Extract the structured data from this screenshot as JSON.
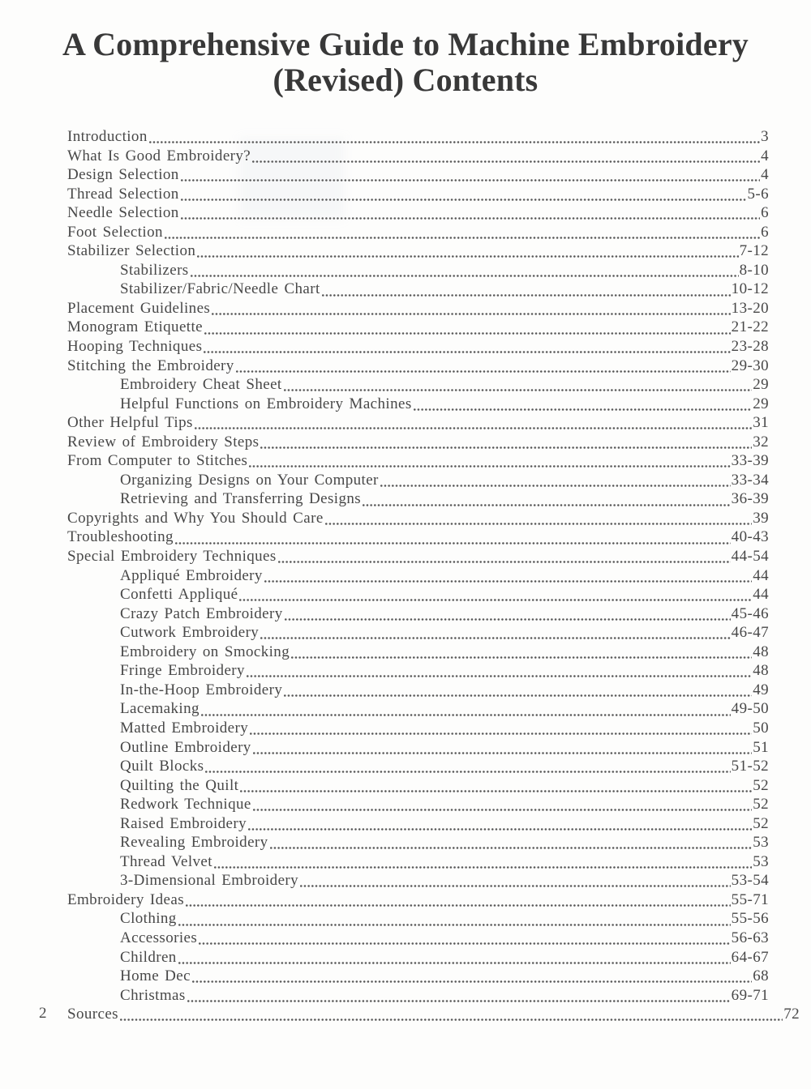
{
  "page": {
    "title_line1": "A Comprehensive Guide to Machine Embroidery",
    "title_line2": "(Revised) Contents",
    "folio": "2"
  },
  "toc": {
    "entries": [
      {
        "label": "Introduction",
        "pages": "3",
        "indent": 0
      },
      {
        "label": "What Is Good Embroidery?",
        "pages": "4",
        "indent": 0
      },
      {
        "label": "Design Selection",
        "pages": "4",
        "indent": 0
      },
      {
        "label": "Thread Selection",
        "pages": "5-6",
        "indent": 0
      },
      {
        "label": "Needle Selection",
        "pages": "6",
        "indent": 0
      },
      {
        "label": "Foot Selection",
        "pages": "6",
        "indent": 0
      },
      {
        "label": "Stabilizer Selection",
        "pages": "7-12",
        "indent": 0
      },
      {
        "label": "Stabilizers",
        "pages": "8-10",
        "indent": 1
      },
      {
        "label": "Stabilizer/Fabric/Needle Chart",
        "pages": "10-12",
        "indent": 1
      },
      {
        "label": "Placement Guidelines",
        "pages": "13-20",
        "indent": 0
      },
      {
        "label": "Monogram Etiquette",
        "pages": "21-22",
        "indent": 0
      },
      {
        "label": "Hooping Techniques",
        "pages": "23-28",
        "indent": 0
      },
      {
        "label": "Stitching the Embroidery",
        "pages": "29-30",
        "indent": 0
      },
      {
        "label": "Embroidery Cheat Sheet",
        "pages": "29",
        "indent": 1
      },
      {
        "label": "Helpful Functions on Embroidery Machines",
        "pages": "29",
        "indent": 1
      },
      {
        "label": "Other Helpful Tips",
        "pages": "31",
        "indent": 0
      },
      {
        "label": "Review of Embroidery Steps",
        "pages": "32",
        "indent": 0
      },
      {
        "label": "From Computer to Stitches",
        "pages": "33-39",
        "indent": 0
      },
      {
        "label": "Organizing Designs on Your Computer",
        "pages": "33-34",
        "indent": 1
      },
      {
        "label": "Retrieving and Transferring Designs",
        "pages": "36-39",
        "indent": 1
      },
      {
        "label": "Copyrights and Why You Should Care",
        "pages": "39",
        "indent": 0
      },
      {
        "label": "Troubleshooting",
        "pages": "40-43",
        "indent": 0
      },
      {
        "label": "Special Embroidery Techniques",
        "pages": "44-54",
        "indent": 0
      },
      {
        "label": "Appliqué Embroidery",
        "pages": "44",
        "indent": 1
      },
      {
        "label": "Confetti Appliqué",
        "pages": "44",
        "indent": 1
      },
      {
        "label": "Crazy Patch Embroidery",
        "pages": "45-46",
        "indent": 1
      },
      {
        "label": "Cutwork Embroidery",
        "pages": "46-47",
        "indent": 1
      },
      {
        "label": "Embroidery on Smocking",
        "pages": "48",
        "indent": 1
      },
      {
        "label": "Fringe Embroidery",
        "pages": "48",
        "indent": 1
      },
      {
        "label": "In-the-Hoop Embroidery",
        "pages": "49",
        "indent": 1
      },
      {
        "label": "Lacemaking",
        "pages": "49-50",
        "indent": 1
      },
      {
        "label": "Matted Embroidery",
        "pages": "50",
        "indent": 1
      },
      {
        "label": "Outline Embroidery",
        "pages": "51",
        "indent": 1
      },
      {
        "label": "Quilt Blocks",
        "pages": "51-52",
        "indent": 1
      },
      {
        "label": "Quilting the Quilt",
        "pages": "52",
        "indent": 1
      },
      {
        "label": "Redwork Technique",
        "pages": "52",
        "indent": 1
      },
      {
        "label": "Raised Embroidery",
        "pages": "52",
        "indent": 1
      },
      {
        "label": "Revealing Embroidery",
        "pages": "53",
        "indent": 1
      },
      {
        "label": "Thread Velvet",
        "pages": "53",
        "indent": 1
      },
      {
        "label": "3-Dimensional Embroidery",
        "pages": "53-54",
        "indent": 1
      },
      {
        "label": "Embroidery Ideas",
        "pages": "55-71",
        "indent": 0
      },
      {
        "label": "Clothing",
        "pages": "55-56",
        "indent": 1
      },
      {
        "label": "Accessories",
        "pages": "56-63",
        "indent": 1
      },
      {
        "label": "Children",
        "pages": "64-67",
        "indent": 1
      },
      {
        "label": "Home Dec",
        "pages": "68",
        "indent": 1
      },
      {
        "label": "Christmas",
        "pages": "69-71",
        "indent": 1
      },
      {
        "label": "Sources",
        "pages": "72",
        "indent": 0,
        "wide": true
      }
    ]
  },
  "colors": {
    "bg": "#fdfdfc",
    "title": "#383838",
    "text": "#484848",
    "dots": "#585858"
  }
}
